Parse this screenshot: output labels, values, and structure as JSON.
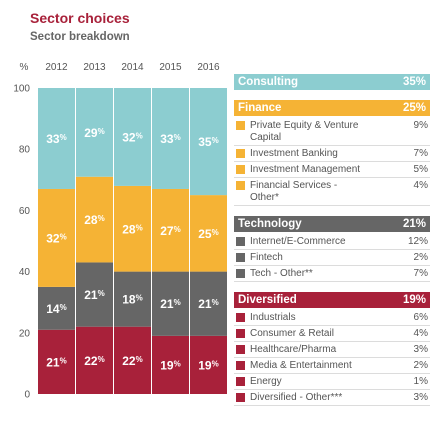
{
  "title": "Sector choices",
  "subtitle": "Sector breakdown",
  "chart_data": {
    "type": "bar",
    "stacked": true,
    "ylabel": "%",
    "ylim": [
      0,
      100
    ],
    "yticks": [
      0,
      20,
      40,
      60,
      80,
      100
    ],
    "categories": [
      "2012",
      "2013",
      "2014",
      "2015",
      "2016"
    ],
    "series": [
      {
        "name": "Diversified",
        "color": "#a8213a",
        "values": [
          21,
          22,
          22,
          19,
          19
        ]
      },
      {
        "name": "Technology",
        "color": "#666666",
        "values": [
          14,
          21,
          18,
          21,
          21
        ]
      },
      {
        "name": "Finance",
        "color": "#f5b335",
        "values": [
          32,
          28,
          28,
          27,
          25
        ]
      },
      {
        "name": "Consulting",
        "color": "#8ccdd0",
        "values": [
          33,
          29,
          32,
          33,
          35
        ]
      }
    ],
    "bar_labels": [
      [
        "21%",
        "22%",
        "22%",
        "19%",
        "19%"
      ],
      [
        "14%",
        "21%",
        "18%",
        "21%",
        "21%"
      ],
      [
        "32%",
        "28%",
        "28%",
        "27%",
        "25%"
      ],
      [
        "33%",
        "29%",
        "32%",
        "33%",
        "35%"
      ]
    ],
    "grid": false,
    "legend_position": "right"
  },
  "legend": [
    {
      "name": "Consulting",
      "value": "35%",
      "color": "#8ccdd0",
      "items": []
    },
    {
      "name": "Finance",
      "value": "25%",
      "color": "#f5b335",
      "items": [
        {
          "label": "Private Equity & Venture Capital",
          "value": "9%"
        },
        {
          "label": "Investment Banking",
          "value": "7%"
        },
        {
          "label": "Investment Management",
          "value": "5%"
        },
        {
          "label": "Financial Services - Other*",
          "value": "4%"
        }
      ]
    },
    {
      "name": "Technology",
      "value": "21%",
      "color": "#666666",
      "items": [
        {
          "label": "Internet/E-Commerce",
          "value": "12%"
        },
        {
          "label": "Fintech",
          "value": "2%"
        },
        {
          "label": "Tech - Other**",
          "value": "7%"
        }
      ]
    },
    {
      "name": "Diversified",
      "value": "19%",
      "color": "#a8213a",
      "items": [
        {
          "label": "Industrials",
          "value": "6%"
        },
        {
          "label": "Consumer & Retail",
          "value": "4%"
        },
        {
          "label": "Healthcare/Pharma",
          "value": "3%"
        },
        {
          "label": "Media & Entertainment",
          "value": "2%"
        },
        {
          "label": "Energy",
          "value": "1%"
        },
        {
          "label": "Diversified - Other***",
          "value": "3%"
        }
      ]
    }
  ]
}
